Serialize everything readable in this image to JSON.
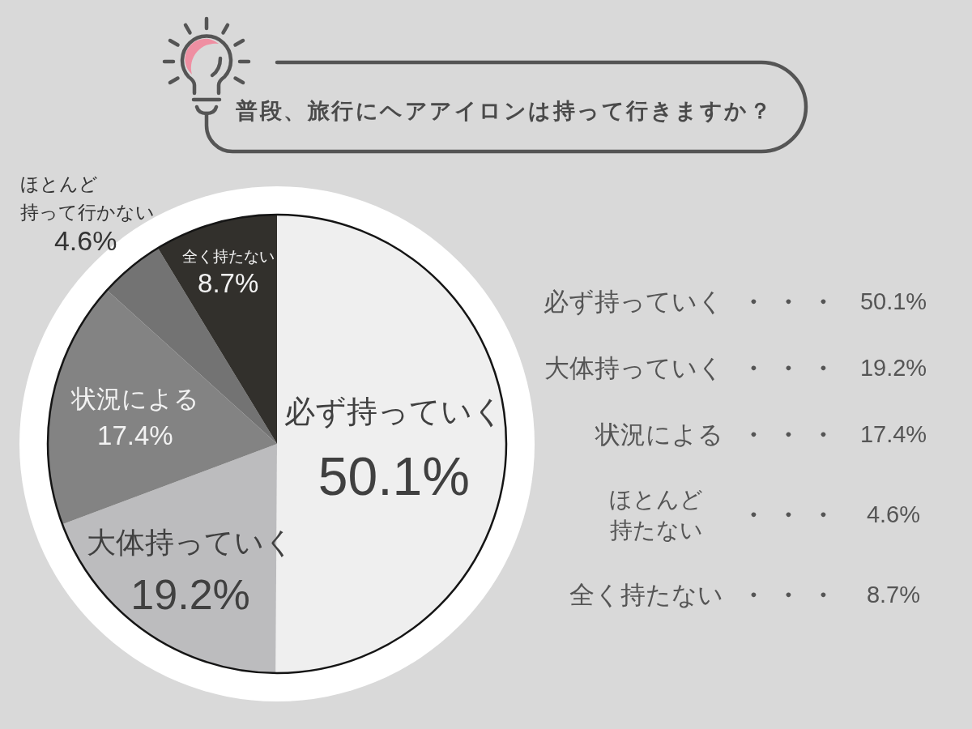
{
  "chart_data": {
    "type": "pie",
    "title": "普段、旅行にヘアアイロンは持って行きますか？",
    "categories": [
      "必ず持っていく",
      "大体持っていく",
      "状況による",
      "ほとんど持って行かない",
      "全く持たない"
    ],
    "values": [
      50.1,
      19.2,
      17.4,
      4.6,
      8.7
    ],
    "colors": [
      "#efefef",
      "#bcbcbe",
      "#838383",
      "#737373",
      "#32302c"
    ],
    "value_labels": [
      "50.1%",
      "19.2%",
      "17.4%",
      "4.6%",
      "8.7%"
    ],
    "annotations": [
      "必ず持っていく ・ ・ ・ 50.1%",
      "大体持っていく ・ ・ ・ 19.2%",
      "状況による ・ ・ ・ 17.4%",
      "ほとんど持たない ・ ・ ・ 4.6%",
      "全く持たない ・ ・ ・ 8.7%"
    ]
  }
}
